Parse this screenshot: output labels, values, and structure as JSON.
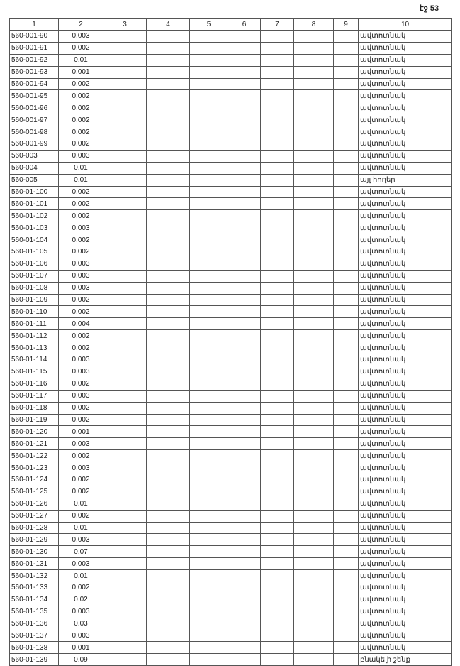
{
  "page_label": "էջ 53",
  "columns": [
    "1",
    "2",
    "3",
    "4",
    "5",
    "6",
    "7",
    "8",
    "9",
    "10"
  ],
  "rows": [
    [
      "560-001-90",
      "0.003",
      "ավտոտնակ"
    ],
    [
      "560-001-91",
      "0.002",
      "ավտոտնակ"
    ],
    [
      "560-001-92",
      "0.01",
      "ավտոտնակ"
    ],
    [
      "560-001-93",
      "0.001",
      "ավտոտնակ"
    ],
    [
      "560-001-94",
      "0.002",
      "ավտոտնակ"
    ],
    [
      "560-001-95",
      "0.002",
      "ավտոտնակ"
    ],
    [
      "560-001-96",
      "0.002",
      "ավտոտնակ"
    ],
    [
      "560-001-97",
      "0.002",
      "ավտոտնակ"
    ],
    [
      "560-001-98",
      "0.002",
      "ավտոտնակ"
    ],
    [
      "560-001-99",
      "0.002",
      "ավտոտնակ"
    ],
    [
      "560-003",
      "0.003",
      "ավտոտնակ"
    ],
    [
      "560-004",
      "0.01",
      "ավտոտնակ"
    ],
    [
      "560-005",
      "0.01",
      "այլ հողեր"
    ],
    [
      "560-01-100",
      "0.002",
      "ավտոտնակ"
    ],
    [
      "560-01-101",
      "0.002",
      "ավտոտնակ"
    ],
    [
      "560-01-102",
      "0.002",
      "ավտոտնակ"
    ],
    [
      "560-01-103",
      "0.003",
      "ավտոտնակ"
    ],
    [
      "560-01-104",
      "0.002",
      "ավտոտնակ"
    ],
    [
      "560-01-105",
      "0.002",
      "ավտոտնակ"
    ],
    [
      "560-01-106",
      "0.003",
      "ավտոտնակ"
    ],
    [
      "560-01-107",
      "0.003",
      "ավտոտնակ"
    ],
    [
      "560-01-108",
      "0.003",
      "ավտոտնակ"
    ],
    [
      "560-01-109",
      "0.002",
      "ավտոտնակ"
    ],
    [
      "560-01-110",
      "0.002",
      "ավտոտնակ"
    ],
    [
      "560-01-111",
      "0.004",
      "ավտոտնակ"
    ],
    [
      "560-01-112",
      "0.002",
      "ավտոտնակ"
    ],
    [
      "560-01-113",
      "0.002",
      "ավտոտնակ"
    ],
    [
      "560-01-114",
      "0.003",
      "ավտոտնակ"
    ],
    [
      "560-01-115",
      "0.003",
      "ավտոտնակ"
    ],
    [
      "560-01-116",
      "0.002",
      "ավտոտնակ"
    ],
    [
      "560-01-117",
      "0.003",
      "ավտոտնակ"
    ],
    [
      "560-01-118",
      "0.002",
      "ավտոտնակ"
    ],
    [
      "560-01-119",
      "0.002",
      "ավտոտնակ"
    ],
    [
      "560-01-120",
      "0.001",
      "ավտոտնակ"
    ],
    [
      "560-01-121",
      "0.003",
      "ավտոտնակ"
    ],
    [
      "560-01-122",
      "0.002",
      "ավտոտնակ"
    ],
    [
      "560-01-123",
      "0.003",
      "ավտոտնակ"
    ],
    [
      "560-01-124",
      "0.002",
      "ավտոտնակ"
    ],
    [
      "560-01-125",
      "0.002",
      "ավտոտնակ"
    ],
    [
      "560-01-126",
      "0.01",
      "ավտոտնակ"
    ],
    [
      "560-01-127",
      "0.002",
      "ավտոտնակ"
    ],
    [
      "560-01-128",
      "0.01",
      "ավտոտնակ"
    ],
    [
      "560-01-129",
      "0.003",
      "ավտոտնակ"
    ],
    [
      "560-01-130",
      "0.07",
      "ավտոտնակ"
    ],
    [
      "560-01-131",
      "0.003",
      "ավտոտնակ"
    ],
    [
      "560-01-132",
      "0.01",
      "ավտոտնակ"
    ],
    [
      "560-01-133",
      "0.002",
      "ավտոտնակ"
    ],
    [
      "560-01-134",
      "0.02",
      "ավտոտնակ"
    ],
    [
      "560-01-135",
      "0.003",
      "ավտոտնակ"
    ],
    [
      "560-01-136",
      "0.03",
      "ավտոտնակ"
    ],
    [
      "560-01-137",
      "0.003",
      "ավտոտնակ"
    ],
    [
      "560-01-138",
      "0.001",
      "ավտոտնակ"
    ],
    [
      "560-01-139",
      "0.09",
      "բնակելի շենք"
    ]
  ]
}
